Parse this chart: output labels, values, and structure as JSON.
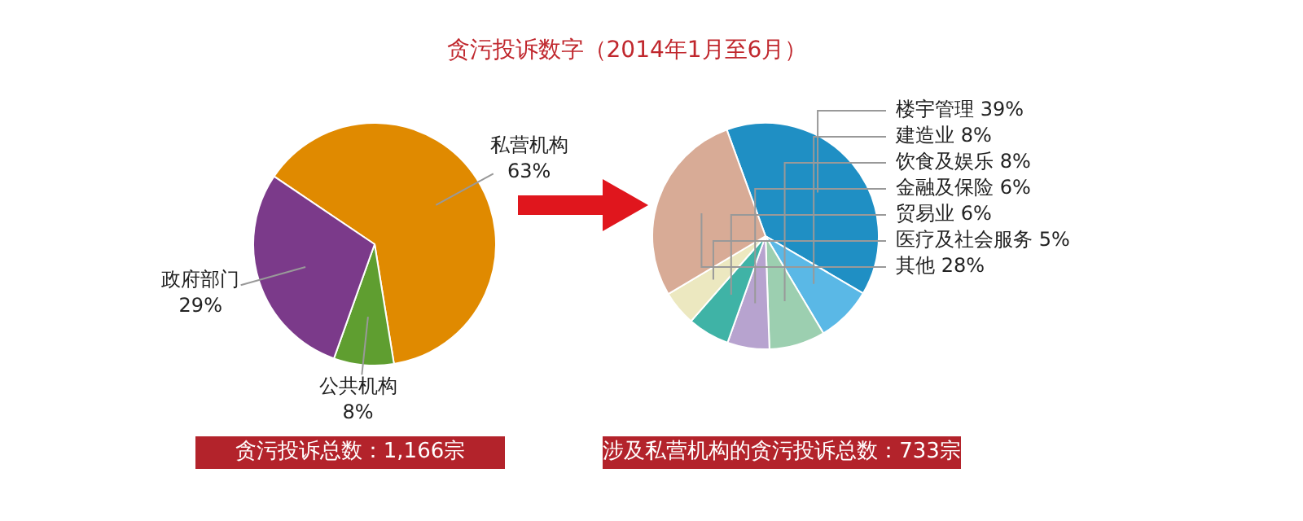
{
  "chart_data": [
    {
      "type": "pie",
      "title": "贪污投诉数字（2014年1月至6月）",
      "categories": [
        "私营机构",
        "公共机构",
        "政府部门"
      ],
      "values": [
        63,
        8,
        29
      ],
      "colors": [
        "#e08a00",
        "#5f9e30",
        "#7b3a8a"
      ],
      "data_labels": true,
      "value_labels": [
        "63%",
        "8%",
        "29%"
      ],
      "annotations": [
        "贪污投诉总数：1,166宗"
      ]
    },
    {
      "type": "pie",
      "categories": [
        "楼宇管理",
        "建造业",
        "饮食及娱乐",
        "金融及保险",
        "贸易业",
        "医疗及社会服务",
        "其他"
      ],
      "values": [
        39,
        8,
        8,
        6,
        6,
        5,
        28
      ],
      "colors": [
        "#1f8fc4",
        "#5ab8e6",
        "#9ccfb0",
        "#b7a3cf",
        "#3fb3a6",
        "#ece8c0",
        "#d8ab96"
      ],
      "data_labels": true,
      "value_labels": [
        "39%",
        "8%",
        "8%",
        "6%",
        "6%",
        "5%",
        "28%"
      ],
      "annotations": [
        "涉及私营机构的贪污投诉总数：733宗"
      ]
    }
  ]
}
